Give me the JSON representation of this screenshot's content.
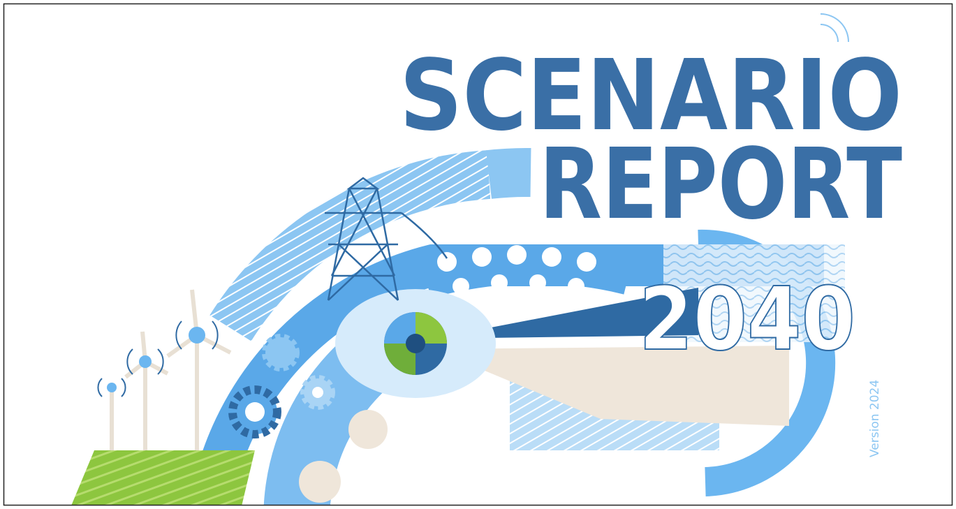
{
  "cover": {
    "title_line1": "SCENARIO",
    "title_line2": "REPORT",
    "year": "2040",
    "version": "Version 2024"
  }
}
